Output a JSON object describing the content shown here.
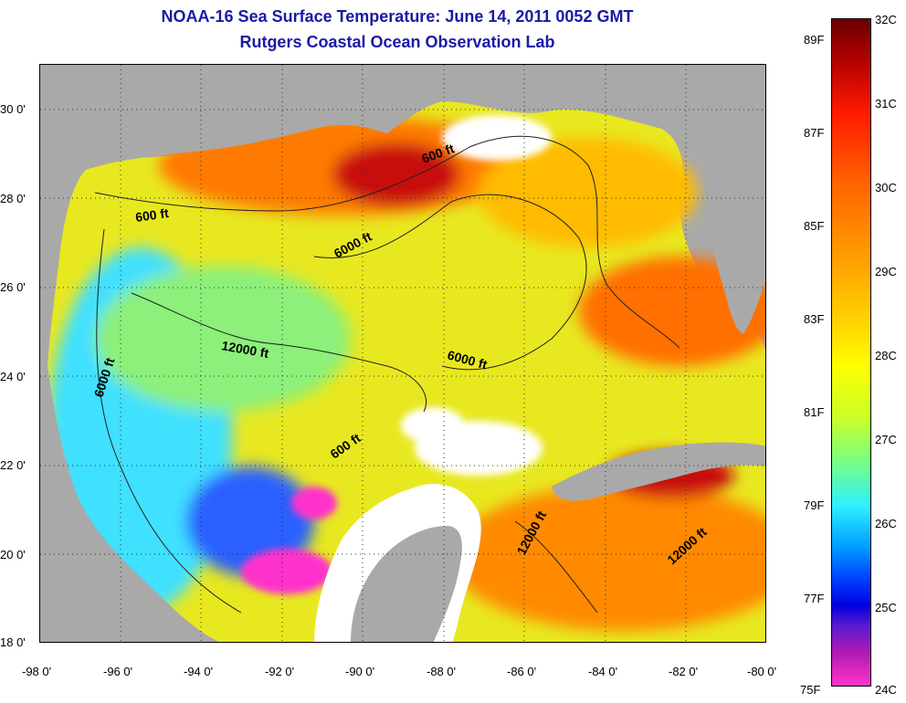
{
  "title": {
    "line1": "NOAA-16 Sea Surface Temperature:  June 14, 2011 0052 GMT",
    "line2": "Rutgers Coastal Ocean Observation Lab"
  },
  "map": {
    "lon_range": [
      -98,
      -80
    ],
    "lat_range": [
      18,
      31
    ],
    "x_ticks": [
      "-98 0'",
      "-96 0'",
      "-94 0'",
      "-92 0'",
      "-90 0'",
      "-88 0'",
      "-86 0'",
      "-84 0'",
      "-82 0'",
      "-80 0'"
    ],
    "y_ticks": [
      "30 0'",
      "28 0'",
      "26 0'",
      "24 0'",
      "22 0'",
      "20 0'",
      "18 0'"
    ],
    "contour_labels": [
      "600 ft",
      "600 ft",
      "6000 ft",
      "12000 ft",
      "6000 ft",
      "6000 ft",
      "600 ft",
      "12000 ft",
      "12000 ft"
    ],
    "colors": {
      "land": "#a9a9a9",
      "cloud": "#ffffff",
      "warm": "#ff6a00",
      "hot": "#c01010",
      "mild": "#ffe600",
      "cool": "#40e0ff",
      "cold": "#2050ff",
      "coldest": "#ff33cc"
    }
  },
  "colorbar": {
    "celsius": [
      "32C",
      "31C",
      "30C",
      "29C",
      "28C",
      "27C",
      "26C",
      "25C",
      "24C"
    ],
    "fahrenheit": [
      "89F",
      "87F",
      "85F",
      "83F",
      "81F",
      "79F",
      "77F",
      "75F"
    ]
  }
}
